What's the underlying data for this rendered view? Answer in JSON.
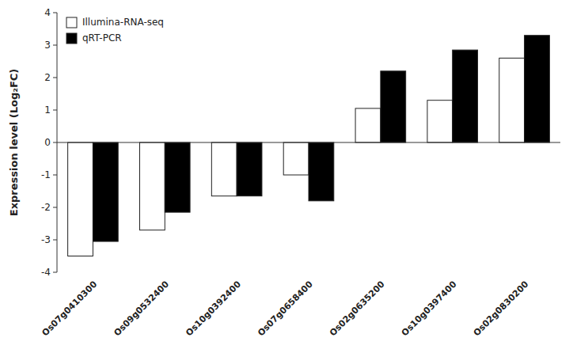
{
  "chart_data": {
    "type": "bar",
    "ylabel": "Expression level (Log₂FC)",
    "categories": [
      "Os07g0410300",
      "Os09g0532400",
      "Os10g0392400",
      "Os07g0658400",
      "Os02g0635200",
      "Os10g0397400",
      "Os02g0830200"
    ],
    "series": [
      {
        "name": "Illumina-RNA-seq",
        "color": "#ffffff",
        "values": [
          -3.5,
          -2.7,
          -1.65,
          -1.0,
          1.05,
          1.3,
          2.6
        ]
      },
      {
        "name": "qRT-PCR",
        "color": "#000000",
        "values": [
          -3.05,
          -2.15,
          -1.65,
          -1.8,
          2.2,
          2.85,
          3.3
        ]
      }
    ],
    "ylim": [
      -4,
      4
    ],
    "yticks": [
      -4,
      -3,
      -2,
      -1,
      0,
      1,
      2,
      3,
      4
    ],
    "grid": false,
    "legend": "upper left"
  }
}
